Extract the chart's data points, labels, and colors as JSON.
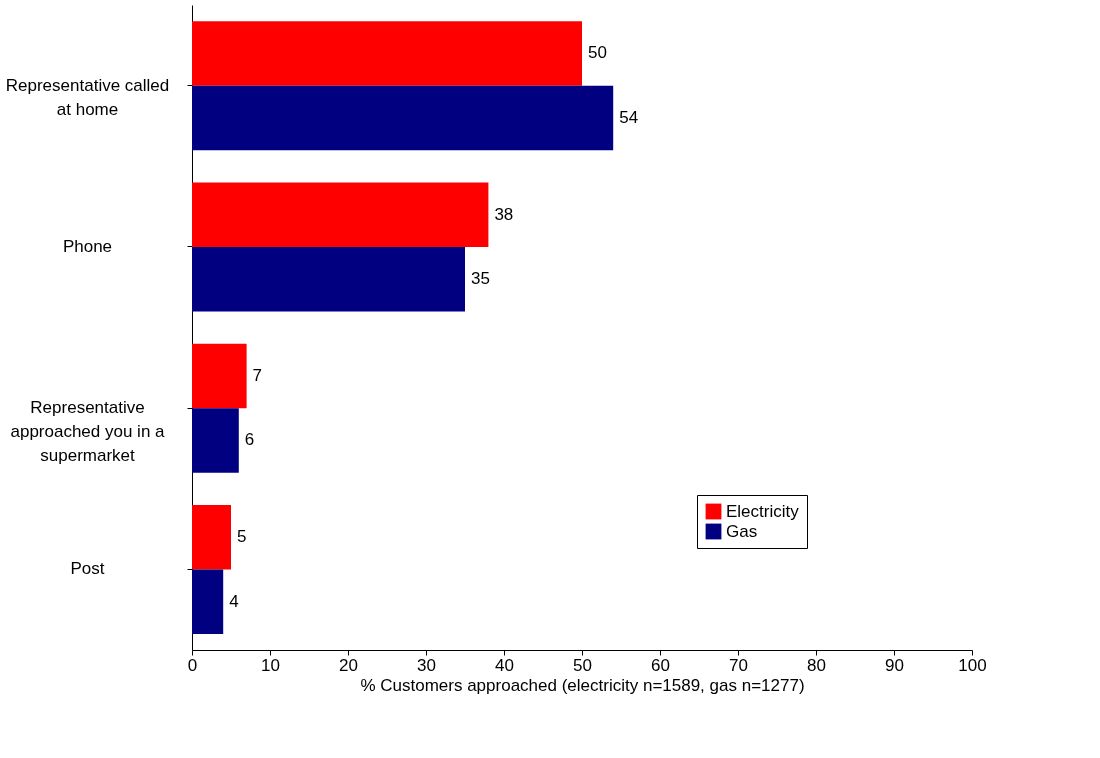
{
  "chart_data": {
    "type": "bar",
    "orientation": "horizontal",
    "categories": [
      "Representative called at home",
      "Phone",
      "Representative approached you in a supermarket",
      "Post"
    ],
    "series": [
      {
        "name": "Electricity",
        "color": "#ff0000",
        "values": [
          50,
          38,
          7,
          5
        ]
      },
      {
        "name": "Gas",
        "color": "#000080",
        "values": [
          54,
          35,
          6,
          4
        ]
      }
    ],
    "xlabel": "% Customers approached (electricity n=1589, gas n=1277)",
    "xlim": [
      0,
      100
    ],
    "xticks": [
      0,
      10,
      20,
      30,
      40,
      50,
      60,
      70,
      80,
      90,
      100
    ],
    "data_labels": true,
    "grid": false,
    "legend": "bottom right"
  }
}
